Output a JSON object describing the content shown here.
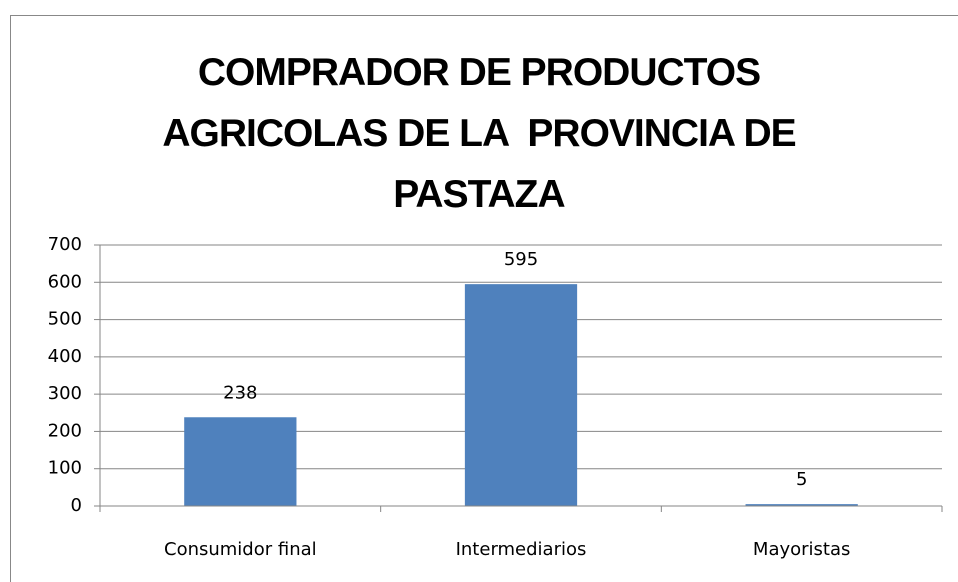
{
  "chart_data": {
    "type": "bar",
    "title": "COMPRADOR DE PRODUCTOS AGRICOLAS DE LA  PROVINCIA DE PASTAZA",
    "categories": [
      "Consumidor final",
      "Intermediarios",
      "Mayoristas"
    ],
    "values": [
      238,
      595,
      5
    ],
    "color": "#4f81bd",
    "ylim": [
      0,
      700
    ],
    "yticks": [
      0,
      100,
      200,
      300,
      400,
      500,
      600,
      700
    ],
    "grid": true
  }
}
